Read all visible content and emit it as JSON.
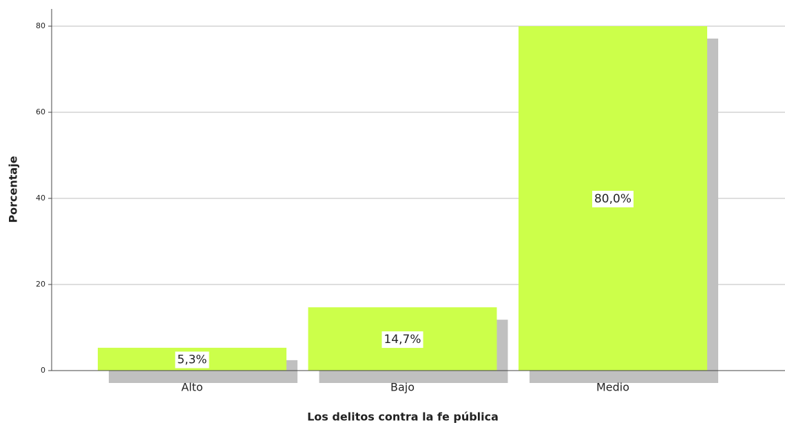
{
  "chart_data": {
    "type": "bar",
    "x_label": "Los delitos contra la fe pública",
    "y_label": "Porcentaje",
    "categories": [
      "Alto",
      "Bajo",
      "Medio"
    ],
    "values": [
      5.3,
      14.7,
      80.0
    ],
    "value_labels": [
      "5,3%",
      "14,7%",
      "80,0%"
    ],
    "color": "#ccff4a",
    "shadow_color": "#c0c0c0",
    "ylim": [
      0,
      84
    ],
    "yticks": [
      0,
      20,
      40,
      60,
      80
    ],
    "grid": true
  }
}
